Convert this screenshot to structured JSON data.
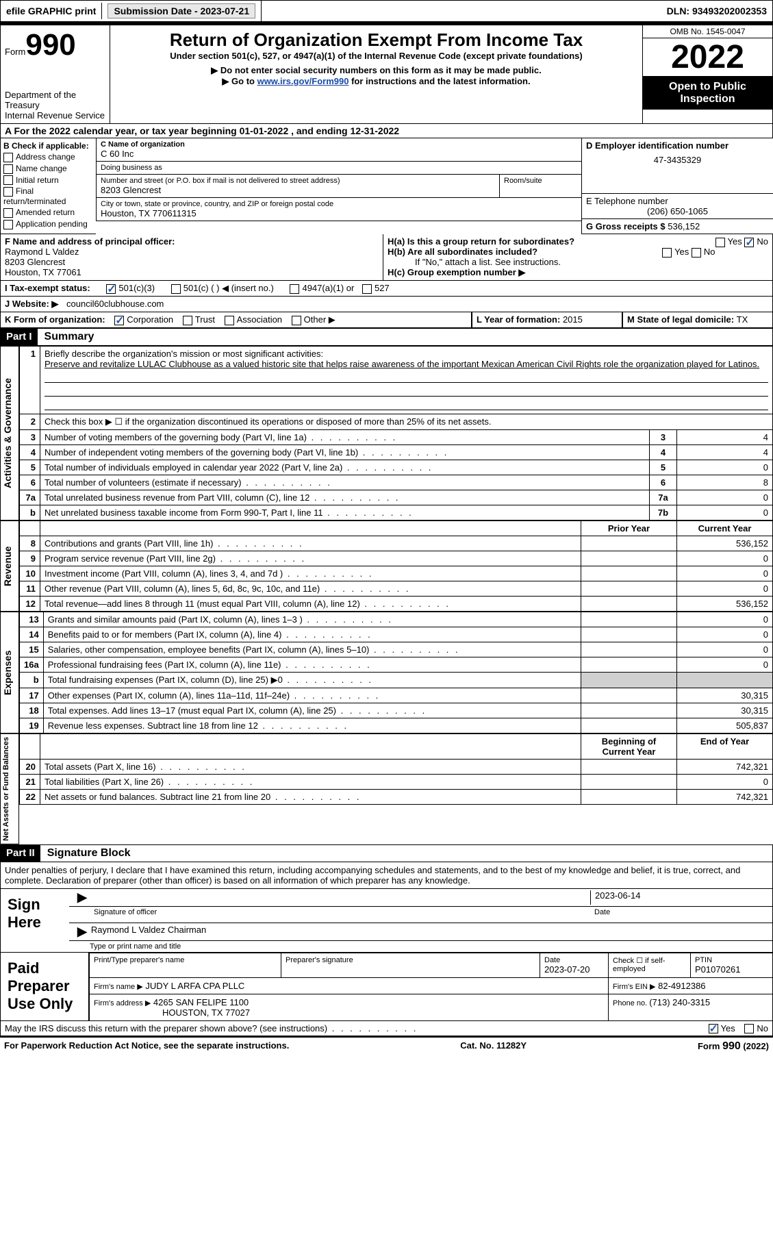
{
  "topbar": {
    "efile_label": "efile GRAPHIC print",
    "submission_label": "Submission Date - 2023-07-21",
    "dln_label": "DLN: 93493202002353"
  },
  "header": {
    "form_prefix": "Form",
    "form_number": "990",
    "dept": "Department of the Treasury",
    "irs": "Internal Revenue Service",
    "title": "Return of Organization Exempt From Income Tax",
    "subtitle": "Under section 501(c), 527, or 4947(a)(1) of the Internal Revenue Code (except private foundations)",
    "warn1": "▶ Do not enter social security numbers on this form as it may be made public.",
    "warn2_pre": "▶ Go to ",
    "warn2_link": "www.irs.gov/Form990",
    "warn2_post": " for instructions and the latest information.",
    "omb": "OMB No. 1545-0047",
    "year": "2022",
    "open": "Open to Public Inspection"
  },
  "section_a": "A For the 2022 calendar year, or tax year beginning 01-01-2022    , and ending 12-31-2022",
  "col_b": {
    "header": "B Check if applicable:",
    "opts": [
      "Address change",
      "Name change",
      "Initial return",
      "Final return/terminated",
      "Amended return",
      "Application pending"
    ]
  },
  "org": {
    "c_label": "C Name of organization",
    "name": "C 60 Inc",
    "dba_label": "Doing business as",
    "dba": "",
    "street_label": "Number and street (or P.O. box if mail is not delivered to street address)",
    "room_label": "Room/suite",
    "street": "8203 Glencrest",
    "city_label": "City or town, state or province, country, and ZIP or foreign postal code",
    "city": "Houston, TX  770611315"
  },
  "right": {
    "d_label": "D Employer identification number",
    "ein": "47-3435329",
    "e_label": "E Telephone number",
    "phone": "(206) 650-1065",
    "g_label": "G Gross receipts $ ",
    "g_val": "536,152"
  },
  "officer": {
    "f_label": "F Name and address of principal officer:",
    "name": "Raymond L Valdez",
    "street": "8203 Glencrest",
    "city": "Houston, TX  77061"
  },
  "h": {
    "a_label": "H(a)  Is this a group return for subordinates?",
    "yes": "Yes",
    "no": "No",
    "b_label": "H(b)  Are all subordinates included?",
    "b_note": "If \"No,\" attach a list. See instructions.",
    "c_label": "H(c)  Group exemption number ▶"
  },
  "i": {
    "label": "I  Tax-exempt status:",
    "o1": "501(c)(3)",
    "o2": "501(c) (  ) ◀ (insert no.)",
    "o3": "4947(a)(1) or",
    "o4": "527"
  },
  "j": {
    "label": "J  Website: ▶",
    "val": "council60clubhouse.com"
  },
  "k": {
    "label": "K Form of organization:",
    "o1": "Corporation",
    "o2": "Trust",
    "o3": "Association",
    "o4": "Other ▶"
  },
  "l": {
    "label": "L Year of formation: ",
    "val": "2015"
  },
  "m": {
    "label": "M State of legal domicile: ",
    "val": "TX"
  },
  "part1": {
    "header": "Part I",
    "title": "Summary"
  },
  "summary": {
    "line1_label": "Briefly describe the organization's mission or most significant activities:",
    "mission": "Preserve and revitalize LULAC Clubhouse as a valued historic site that helps raise awareness of the important Mexican American Civil Rights role the organization played for Latinos.",
    "line2": "Check this box ▶ ☐ if the organization discontinued its operations or disposed of more than 25% of its net assets.",
    "rows_gov": [
      {
        "n": "3",
        "desc": "Number of voting members of the governing body (Part VI, line 1a)",
        "box": "3",
        "val": "4"
      },
      {
        "n": "4",
        "desc": "Number of independent voting members of the governing body (Part VI, line 1b)",
        "box": "4",
        "val": "4"
      },
      {
        "n": "5",
        "desc": "Total number of individuals employed in calendar year 2022 (Part V, line 2a)",
        "box": "5",
        "val": "0"
      },
      {
        "n": "6",
        "desc": "Total number of volunteers (estimate if necessary)",
        "box": "6",
        "val": "8"
      },
      {
        "n": "7a",
        "desc": "Total unrelated business revenue from Part VIII, column (C), line 12",
        "box": "7a",
        "val": "0"
      },
      {
        "n": "b",
        "desc": "Net unrelated business taxable income from Form 990-T, Part I, line 11",
        "box": "7b",
        "val": "0"
      }
    ],
    "prior_label": "Prior Year",
    "current_label": "Current Year",
    "rows_rev": [
      {
        "n": "8",
        "desc": "Contributions and grants (Part VIII, line 1h)",
        "prior": "",
        "cur": "536,152"
      },
      {
        "n": "9",
        "desc": "Program service revenue (Part VIII, line 2g)",
        "prior": "",
        "cur": "0"
      },
      {
        "n": "10",
        "desc": "Investment income (Part VIII, column (A), lines 3, 4, and 7d )",
        "prior": "",
        "cur": "0"
      },
      {
        "n": "11",
        "desc": "Other revenue (Part VIII, column (A), lines 5, 6d, 8c, 9c, 10c, and 11e)",
        "prior": "",
        "cur": "0"
      },
      {
        "n": "12",
        "desc": "Total revenue—add lines 8 through 11 (must equal Part VIII, column (A), line 12)",
        "prior": "",
        "cur": "536,152"
      }
    ],
    "rows_exp": [
      {
        "n": "13",
        "desc": "Grants and similar amounts paid (Part IX, column (A), lines 1–3 )",
        "prior": "",
        "cur": "0"
      },
      {
        "n": "14",
        "desc": "Benefits paid to or for members (Part IX, column (A), line 4)",
        "prior": "",
        "cur": "0"
      },
      {
        "n": "15",
        "desc": "Salaries, other compensation, employee benefits (Part IX, column (A), lines 5–10)",
        "prior": "",
        "cur": "0"
      },
      {
        "n": "16a",
        "desc": "Professional fundraising fees (Part IX, column (A), line 11e)",
        "prior": "",
        "cur": "0"
      },
      {
        "n": "b",
        "desc": "Total fundraising expenses (Part IX, column (D), line 25) ▶0",
        "prior": "SHADE",
        "cur": "SHADE"
      },
      {
        "n": "17",
        "desc": "Other expenses (Part IX, column (A), lines 11a–11d, 11f–24e)",
        "prior": "",
        "cur": "30,315"
      },
      {
        "n": "18",
        "desc": "Total expenses. Add lines 13–17 (must equal Part IX, column (A), line 25)",
        "prior": "",
        "cur": "30,315"
      },
      {
        "n": "19",
        "desc": "Revenue less expenses. Subtract line 18 from line 12",
        "prior": "",
        "cur": "505,837"
      }
    ],
    "begin_label": "Beginning of Current Year",
    "end_label": "End of Year",
    "rows_net": [
      {
        "n": "20",
        "desc": "Total assets (Part X, line 16)",
        "prior": "",
        "cur": "742,321"
      },
      {
        "n": "21",
        "desc": "Total liabilities (Part X, line 26)",
        "prior": "",
        "cur": "0"
      },
      {
        "n": "22",
        "desc": "Net assets or fund balances. Subtract line 21 from line 20",
        "prior": "",
        "cur": "742,321"
      }
    ],
    "vlabels": {
      "gov": "Activities & Governance",
      "rev": "Revenue",
      "exp": "Expenses",
      "net": "Net Assets or Fund Balances"
    }
  },
  "part2": {
    "header": "Part II",
    "title": "Signature Block"
  },
  "sig": {
    "declaration": "Under penalties of perjury, I declare that I have examined this return, including accompanying schedules and statements, and to the best of my knowledge and belief, it is true, correct, and complete. Declaration of preparer (other than officer) is based on all information of which preparer has any knowledge.",
    "sign_here": "Sign Here",
    "sig_officer": "Signature of officer",
    "date_label": "Date",
    "date": "2023-06-14",
    "name_title": "Raymond L Valdez  Chairman",
    "type_label": "Type or print name and title"
  },
  "prep": {
    "label": "Paid Preparer Use Only",
    "print_label": "Print/Type preparer's name",
    "sig_label": "Preparer's signature",
    "date_label": "Date",
    "date": "2023-07-20",
    "check_label": "Check ☐ if self-employed",
    "ptin_label": "PTIN",
    "ptin": "P01070261",
    "firm_name_label": "Firm's name    ▶",
    "firm_name": "JUDY L ARFA CPA PLLC",
    "firm_ein_label": "Firm's EIN ▶",
    "firm_ein": "82-4912386",
    "firm_addr_label": "Firm's address ▶",
    "firm_addr1": "4265 SAN FELIPE 1100",
    "firm_addr2": "HOUSTON, TX  77027",
    "phone_label": "Phone no. ",
    "phone": "(713) 240-3315"
  },
  "discuss": {
    "q": "May the IRS discuss this return with the preparer shown above? (see instructions)",
    "yes": "Yes",
    "no": "No"
  },
  "footer": {
    "left": "For Paperwork Reduction Act Notice, see the separate instructions.",
    "center": "Cat. No. 11282Y",
    "right": "Form 990 (2022)"
  },
  "colors": {
    "link": "#1a4ba8",
    "check": "#2a5caa",
    "shade": "#d0d0d0"
  }
}
